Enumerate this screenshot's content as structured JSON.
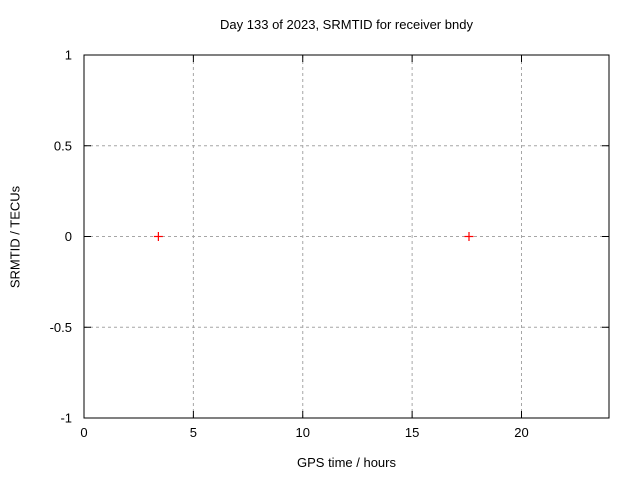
{
  "chart": {
    "title": "Day 133 of 2023, SRMTID for receiver bndy",
    "xlabel": "GPS time / hours",
    "ylabel": "SRMTID / TECUs"
  },
  "chart_data": {
    "type": "scatter",
    "title": "Day 133 of 2023, SRMTID for receiver bndy",
    "xlabel": "GPS time / hours",
    "ylabel": "SRMTID / TECUs",
    "xlim": [
      0,
      24
    ],
    "ylim": [
      -1,
      1
    ],
    "xticks": [
      0,
      5,
      10,
      15,
      20
    ],
    "yticks": [
      -1,
      -0.5,
      0,
      0.5,
      1
    ],
    "grid": true,
    "grid_style": "dashed",
    "legend": false,
    "marker": "plus",
    "series": [
      {
        "name": "SRMTID",
        "points": [
          [
            3.4,
            0
          ],
          [
            17.6,
            0
          ]
        ]
      }
    ]
  },
  "colors": {
    "background": "#ffffff",
    "axis": "#000000",
    "grid": "#a6a6a6",
    "marker": "#ff0000",
    "text": "#000000"
  }
}
